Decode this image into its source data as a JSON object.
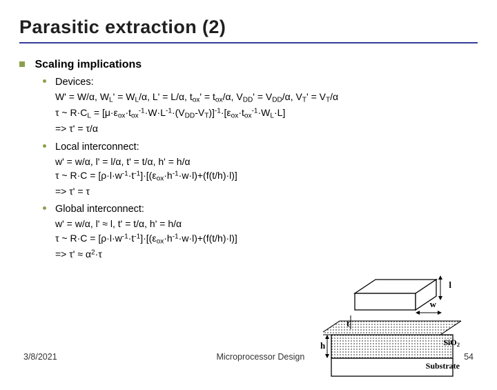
{
  "slide": {
    "title": "Parasitic extraction (2)",
    "heading": "Scaling implications",
    "items": [
      {
        "label": "Devices:",
        "lines": [
          "W' = W/α, W<sub>L</sub>' = W<sub>L</sub>/α, L' = L/α, t<sub>ox</sub>' = t<sub>ox</sub>/α, V<sub>DD</sub>' = V<sub>DD</sub>/α, V<sub>T</sub>' = V<sub>T</sub>/α",
          "τ ~ R·C<sub>L</sub> = [μ·ε<sub>ox</sub>·t<sub>ox</sub><sup>-1</sup>·W·L<sup>-1</sup>·(V<sub>DD</sub>-V<sub>T</sub>)]<sup>-1</sup>·[ε<sub>ox</sub>·t<sub>ox</sub><sup>-1</sup>·W<sub>L</sub>·L]",
          "=> τ' = τ/α"
        ]
      },
      {
        "label": "Local interconnect:",
        "lines": [
          "w' = w/α, l' = l/α, t' = t/α, h' = h/α",
          "τ ~ R·C = [ρ·l·w<sup>-1</sup>·t<sup>-1</sup>]·[(ε<sub>ox</sub>·h<sup>-1</sup>·w·l)+(f(t/h)·l)]",
          "=> τ' = τ"
        ]
      },
      {
        "label": "Global interconnect:",
        "lines": [
          "w' = w/α, l' ≈ l, t' = t/α, h' = h/α",
          "τ ~ R·C = [ρ·l·w<sup>-1</sup>·t<sup>-1</sup>]·[(ε<sub>ox</sub>·h<sup>-1</sup>·w·l)+(f(t/h)·l)]",
          "=> τ' ≈ α<sup>2</sup>·τ"
        ]
      }
    ]
  },
  "diagram": {
    "type": "infographic",
    "labels": {
      "l": "l",
      "w": "w",
      "t": "t",
      "h": "h",
      "sio2": "SiO<sub>2</sub>",
      "substrate": "Substrate"
    },
    "colors": {
      "fill": "#ffffff",
      "stroke": "#000000",
      "pattern": "#000000",
      "background": "#ffffff"
    },
    "strokewidth": 1.3
  },
  "footer": {
    "date": "3/8/2021",
    "center": "Microprocessor Design",
    "page": "54"
  },
  "style": {
    "title_fontsize": 27,
    "body_fontsize": 15,
    "accent_color": "#323c9b",
    "bullet_color": "#8aa04d",
    "text_color": "#000000",
    "background_color": "#ffffff"
  }
}
